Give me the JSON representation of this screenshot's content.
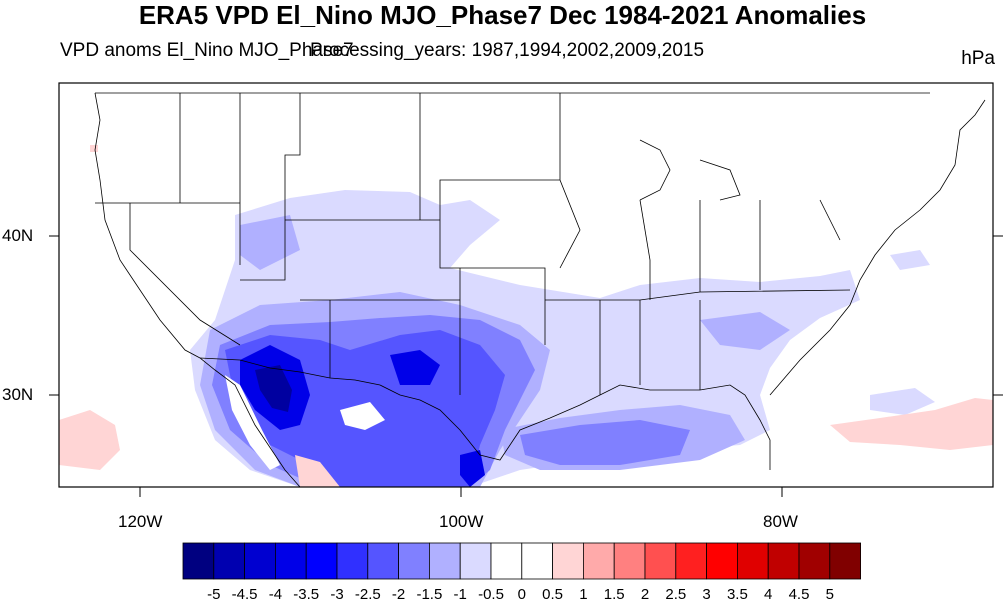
{
  "title": "ERA5 VPD El_Nino MJO_Phase7 Dec 1984-2021 Anomalies",
  "subtitle_left": "VPD anoms El_Nino MJO_Phase7",
  "subtitle_overlap": "Processing_years: 1987,1994,2002,2009,2015",
  "units": "hPa",
  "lat_labels": [
    "40N",
    "30N"
  ],
  "lon_labels": [
    "120W",
    "100W",
    "80W"
  ],
  "colorbar": {
    "colors": [
      "#000080",
      "#0000b0",
      "#0000d0",
      "#0000e8",
      "#0000ff",
      "#3030ff",
      "#5555ff",
      "#8080ff",
      "#b0b0ff",
      "#dadaff",
      "#ffffff",
      "#ffffff",
      "#ffd5d5",
      "#ffaaaa",
      "#ff8080",
      "#ff5050",
      "#ff2020",
      "#ff0000",
      "#e00000",
      "#c00000",
      "#a00000",
      "#800000"
    ],
    "labels": [
      "-5",
      "-4.5",
      "-4",
      "-3.5",
      "-3",
      "-2.5",
      "-2",
      "-1.5",
      "-1",
      "-0.5",
      "0",
      "0.5",
      "1",
      "1.5",
      "2",
      "2.5",
      "3",
      "3.5",
      "4",
      "4.5",
      "5"
    ]
  },
  "map_extent": {
    "lon": [
      -125,
      -68
    ],
    "lat": [
      24,
      50
    ]
  }
}
